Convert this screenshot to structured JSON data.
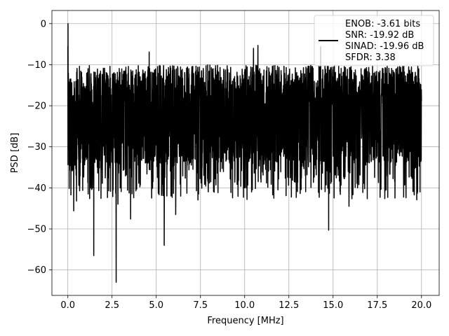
{
  "chart_data": {
    "type": "line",
    "xlabel": "Frequency [MHz]",
    "ylabel": "PSD [dB]",
    "xlim": [
      -0.9,
      21.0
    ],
    "ylim": [
      -66.2,
      3.2
    ],
    "x_ticks": [
      0.0,
      2.5,
      5.0,
      7.5,
      10.0,
      12.5,
      15.0,
      17.5,
      20.0
    ],
    "x_tick_labels": [
      "0.0",
      "2.5",
      "5.0",
      "7.5",
      "10.0",
      "12.5",
      "15.0",
      "17.5",
      "20.0"
    ],
    "y_ticks": [
      0,
      -10,
      -20,
      -30,
      -40,
      -50,
      -60
    ],
    "y_tick_labels": [
      "0",
      "−10",
      "−20",
      "−30",
      "−40",
      "−50",
      "−60"
    ],
    "grid": true,
    "legend_position": "top-right",
    "series": [
      {
        "color": "#000000",
        "x_range": [
          0.0,
          20.0
        ],
        "peak": {
          "x": 0.0,
          "y": 0.0
        },
        "noise_floor_mean": -22,
        "noise_floor_upper": -10,
        "deep_nulls": [
          {
            "x": 0.33,
            "y": -45.6
          },
          {
            "x": 1.15,
            "y": -41.5
          },
          {
            "x": 1.47,
            "y": -56.5
          },
          {
            "x": 2.73,
            "y": -63.0
          },
          {
            "x": 2.83,
            "y": -44.0
          },
          {
            "x": 3.55,
            "y": -47.6
          },
          {
            "x": 5.45,
            "y": -54.0
          },
          {
            "x": 6.1,
            "y": -46.5
          },
          {
            "x": 14.75,
            "y": -50.3
          },
          {
            "x": 15.9,
            "y": -44.5
          },
          {
            "x": 18.5,
            "y": -42.5
          }
        ],
        "high_spikes": [
          {
            "x": 10.75,
            "y": -5.3
          },
          {
            "x": 4.6,
            "y": -6.9
          },
          {
            "x": 14.3,
            "y": -5.6
          },
          {
            "x": 10.5,
            "y": -6.0
          }
        ]
      }
    ],
    "legend": [
      "ENOB: -3.61 bits",
      "SNR: -19.92 dB",
      "SINAD: -19.96 dB",
      "SFDR: 3.38"
    ]
  }
}
